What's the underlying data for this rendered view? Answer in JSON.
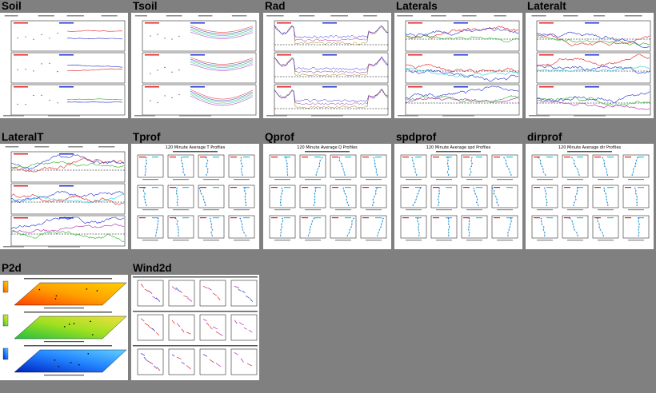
{
  "labels": {
    "soil": "Soil",
    "tsoil": "Tsoil",
    "rad": "Rad",
    "laterals": "Laterals",
    "lateralt": "Lateralt",
    "lateralT2": "LateralT",
    "tprof": "Tprof",
    "qprof": "Qprof",
    "spdprof": "spdprof",
    "dirprof": "dirprof",
    "p2d": "P2d",
    "wind2d": "Wind2d"
  },
  "profile_titles": {
    "tprof": "120 Minute Average T Profiles",
    "qprof": "120 Minute Average Q Profiles",
    "spdprof": "120 Minute Average spd Profiles",
    "dirprof": "120 Minute Average dir Profiles"
  },
  "colors": {
    "background": "#808080",
    "panel": "#ffffff",
    "red": "#e02020",
    "blue": "#1f2fcf",
    "green": "#22b022",
    "cyan": "#22c8d8",
    "magenta": "#b020b0",
    "olive": "#8a8a00",
    "orange": "#ff7a10",
    "darkblue": "#0a2ad0"
  }
}
